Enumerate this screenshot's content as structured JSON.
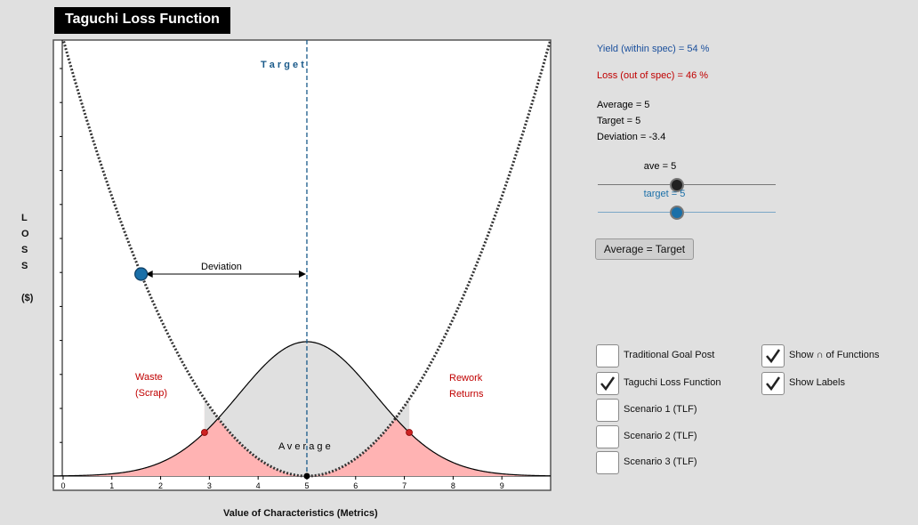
{
  "title": "Taguchi Loss Function",
  "y_axis_label": [
    "L",
    "O",
    "S",
    "S",
    "($)"
  ],
  "x_axis_label": "Value of Characteristics (Metrics)",
  "plot": {
    "target_label": "T a r g e t",
    "average_label": "A v e r a g e",
    "deviation_label": "Deviation",
    "waste_label": [
      "Waste",
      "(Scrap)"
    ],
    "rework_label": [
      "Rework",
      "Returns"
    ],
    "x_ticks": [
      "0",
      "1",
      "2",
      "3",
      "4",
      "5",
      "6",
      "7",
      "8",
      "9"
    ],
    "x_range": [
      -0.2,
      10
    ],
    "average": 5,
    "target": 5,
    "deviation_point_x": 1.6,
    "spec_limits": [
      2.9,
      7.1
    ],
    "normal_sd": 1.4
  },
  "stats": {
    "yield": "Yield (within spec) = 54 %",
    "loss": "Loss (out of spec) = 46 %",
    "average": "Average = 5",
    "target": "Target = 5",
    "deviation": "Deviation = -3.4"
  },
  "sliders": {
    "ave": {
      "label": "ave = 5",
      "value": 5,
      "color": "#222222"
    },
    "target": {
      "label": "target = 5",
      "value": 5,
      "color": "#1a6fa8"
    }
  },
  "button_label": "Average = Target",
  "checkboxes": [
    {
      "label": "Traditional Goal Post",
      "checked": false
    },
    {
      "label": "Taguchi Loss Function",
      "checked": true
    },
    {
      "label": "Scenario 1 (TLF)",
      "checked": false
    },
    {
      "label": "Scenario 2 (TLF)",
      "checked": false
    },
    {
      "label": "Scenario 3 (TLF)",
      "checked": false
    },
    {
      "label": "Show ∩ of Functions",
      "checked": true
    },
    {
      "label": "Show Labels",
      "checked": true
    }
  ],
  "colors": {
    "blue_point": "#1a6fa8",
    "red": "#c00000",
    "waste_fill": "#ffb3b3",
    "inner_fill": "#e0e0e0",
    "target_line": "#1a5a8a"
  }
}
